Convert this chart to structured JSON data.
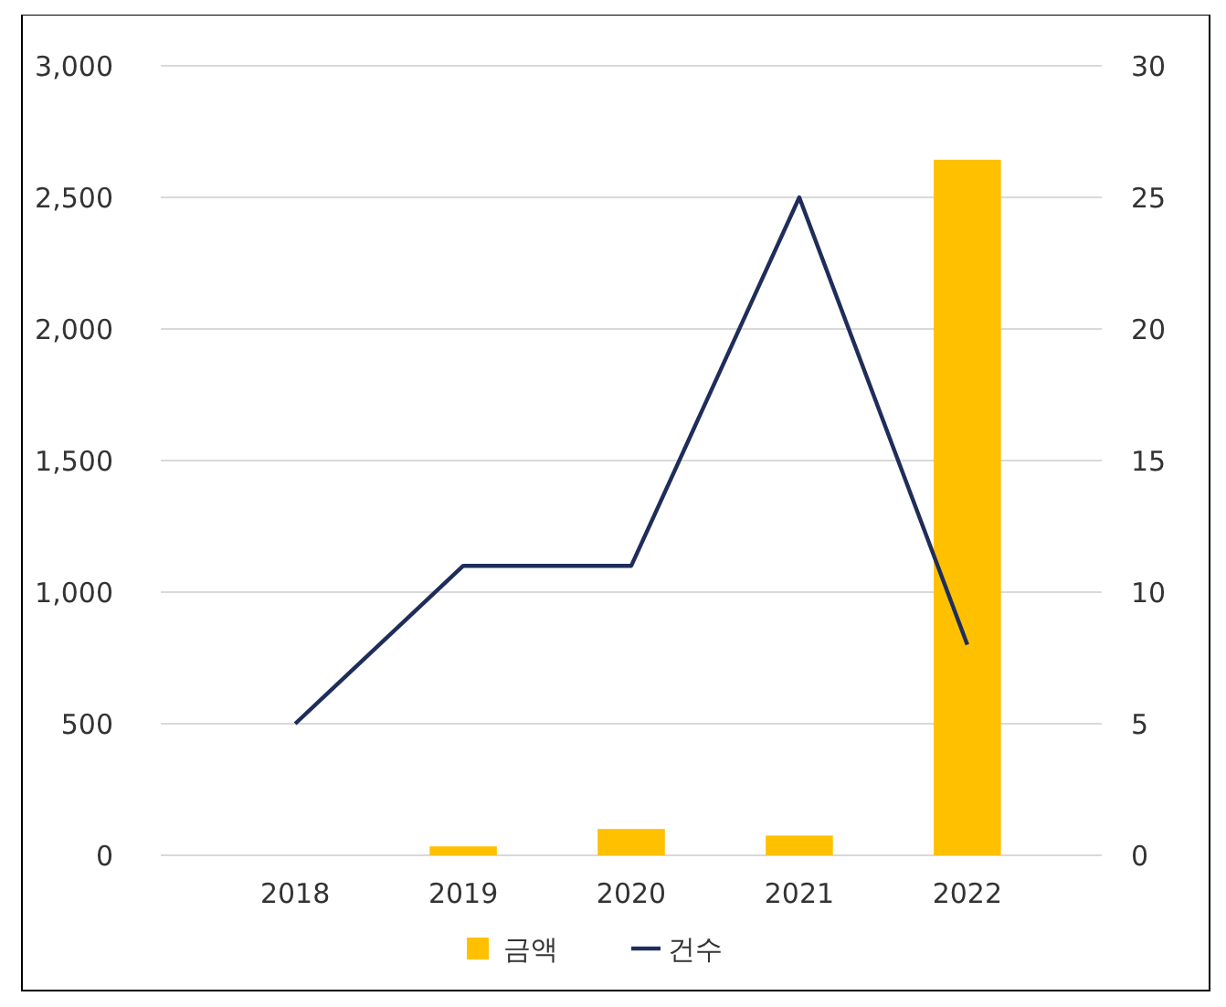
{
  "chart_data": {
    "type": "bar",
    "categories": [
      "2018",
      "2019",
      "2020",
      "2021",
      "2022"
    ],
    "series": [
      {
        "name": "금액",
        "color": "#ffc000",
        "values": [
          0,
          34,
          100,
          75,
          2643
        ]
      },
      {
        "name": "건수",
        "type": "line",
        "axis": "y2",
        "color": "#1f2d5a",
        "values": [
          5,
          11,
          11,
          25,
          8
        ]
      }
    ],
    "ylim": [
      0,
      3000
    ],
    "yticks": [
      {
        "value": 0,
        "label": "0"
      },
      {
        "value": 500,
        "label": "500"
      },
      {
        "value": 1000,
        "label": "1,000"
      },
      {
        "value": 1500,
        "label": "1,500"
      },
      {
        "value": 2000,
        "label": "2,000"
      },
      {
        "value": 2500,
        "label": "2,500"
      },
      {
        "value": 3000,
        "label": "3,000"
      }
    ],
    "y2lim": [
      0,
      30
    ],
    "y2ticks": [
      0,
      5,
      10,
      15,
      20,
      25,
      30
    ],
    "grid": "y",
    "legend": "bottom",
    "marker": "none"
  }
}
